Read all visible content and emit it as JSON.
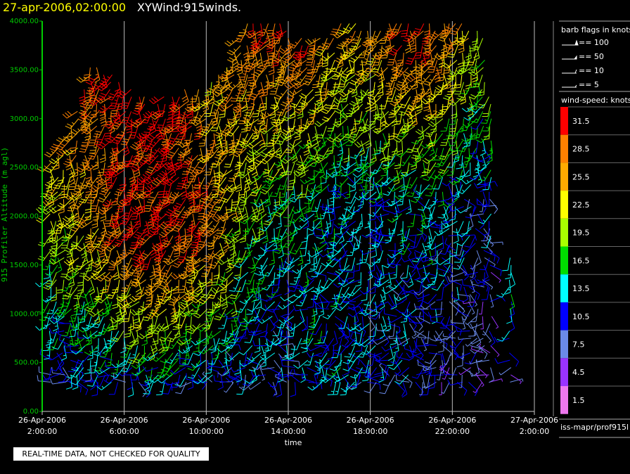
{
  "header": {
    "datetime": "27-apr-2006,02:00:00",
    "product": "XYWind:915winds."
  },
  "notice": "REAL-TIME DATA, NOT CHECKED FOR QUALITY",
  "source": "iss-mapr/prof915l",
  "colors": {
    "axis_y": "#00cc00",
    "axis_x": "#cccccc",
    "grid": "#bbbbbb",
    "title_date": "#ffff00"
  },
  "legend": {
    "flags_title": "barb flags in knots",
    "flags": [
      "== 100",
      "== 50",
      "== 10",
      "== 5"
    ],
    "speed_title": "wind-speed: knots",
    "speed_labels": [
      "31.5",
      "28.5",
      "25.5",
      "22.5",
      "19.5",
      "16.5",
      "13.5",
      "10.5",
      "7.5",
      "4.5",
      "1.5"
    ],
    "speed_colors": [
      "#ff0000",
      "#ff8000",
      "#ffaa00",
      "#ffff00",
      "#aaff00",
      "#00dd00",
      "#00ffff",
      "#0000ff",
      "#6a8ae8",
      "#9933ff",
      "#ee77ee"
    ]
  },
  "chart_data": {
    "type": "scatter",
    "subtype": "wind-barb time-height",
    "xlabel": "time",
    "ylabel": "915 Profiler Altitude (m agl)",
    "x_ticks": [
      [
        "26-Apr-2006",
        "2:00:00"
      ],
      [
        "26-Apr-2006",
        "6:00:00"
      ],
      [
        "26-Apr-2006",
        "10:00:00"
      ],
      [
        "26-Apr-2006",
        "14:00:00"
      ],
      [
        "26-Apr-2006",
        "18:00:00"
      ],
      [
        "26-Apr-2006",
        "22:00:00"
      ],
      [
        "27-Apr-2006",
        "2:00:00"
      ]
    ],
    "x_range_hours": [
      0,
      24
    ],
    "y_ticks": [
      "0.00",
      "500.00",
      "1000.00",
      "1500.00",
      "2000.00",
      "2500.00",
      "3000.00",
      "3500.00",
      "4000.00"
    ],
    "ylim": [
      0,
      4000
    ],
    "grid": "vertical lines at ticks",
    "speed_bins": [
      1.5,
      4.5,
      7.5,
      10.5,
      13.5,
      16.5,
      19.5,
      22.5,
      25.5,
      28.5,
      31.5
    ],
    "profiles_estimated": [
      {
        "hour": 0.3,
        "top": 2550,
        "speeds": {
          "base": 10,
          "mid": 15,
          "top": 25
        }
      },
      {
        "hour": 1.5,
        "top": 3000,
        "speeds": {
          "base": 10,
          "mid": 20,
          "top": 28
        }
      },
      {
        "hour": 2.5,
        "top": 3600,
        "speeds": {
          "base": 10,
          "mid": 25,
          "top": 30
        }
      },
      {
        "hour": 4.0,
        "top": 3350,
        "speeds": {
          "base": 11,
          "mid": 30,
          "top": 31
        }
      },
      {
        "hour": 5.5,
        "top": 3200,
        "speeds": {
          "base": 12,
          "mid": 31,
          "top": 31
        }
      },
      {
        "hour": 7.0,
        "top": 3300,
        "speeds": {
          "base": 11,
          "mid": 31,
          "top": 31
        }
      },
      {
        "hour": 8.5,
        "top": 3400,
        "speeds": {
          "base": 10,
          "mid": 28,
          "top": 22
        }
      },
      {
        "hour": 10.0,
        "top": 4000,
        "speeds": {
          "base": 10,
          "mid": 20,
          "top": 30
        }
      },
      {
        "hour": 11.5,
        "top": 4000,
        "speeds": {
          "base": 9,
          "mid": 16,
          "top": 31
        }
      },
      {
        "hour": 13.0,
        "top": 3800,
        "speeds": {
          "base": 12,
          "mid": 14,
          "top": 30
        }
      },
      {
        "hour": 14.5,
        "top": 4000,
        "speeds": {
          "base": 13,
          "mid": 12,
          "top": 26
        }
      },
      {
        "hour": 16.0,
        "top": 3950,
        "speeds": {
          "base": 11,
          "mid": 12,
          "top": 27
        }
      },
      {
        "hour": 17.5,
        "top": 4000,
        "speeds": {
          "base": 10,
          "mid": 13,
          "top": 31
        }
      },
      {
        "hour": 19.0,
        "top": 4000,
        "speeds": {
          "base": 8,
          "mid": 14,
          "top": 31
        }
      },
      {
        "hour": 20.5,
        "top": 4000,
        "speeds": {
          "base": 7,
          "mid": 12,
          "top": 25
        }
      },
      {
        "hour": 21.5,
        "top": 3900,
        "speeds": {
          "base": 6,
          "mid": 9,
          "top": 20
        }
      },
      {
        "hour": 23.0,
        "top": 1300,
        "speeds": {
          "base": 6,
          "mid": 11,
          "top": 14
        }
      }
    ]
  }
}
